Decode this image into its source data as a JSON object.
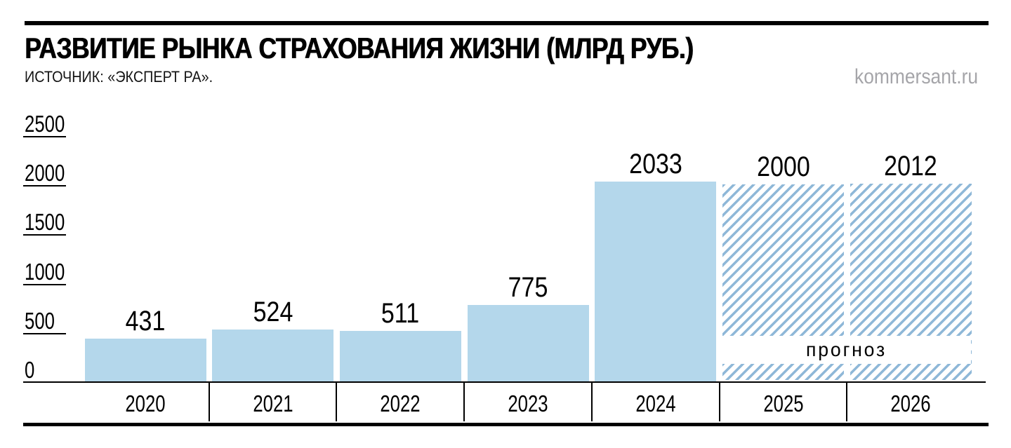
{
  "header": {
    "title": "РАЗВИТИЕ РЫНКА СТРАХОВАНИЯ ЖИЗНИ (МЛРД РУБ.)",
    "source": "ИСТОЧНИК: «ЭКСПЕРТ РА».",
    "watermark": "kommersant.ru"
  },
  "chart_data": {
    "type": "bar",
    "title": "РАЗВИТИЕ РЫНКА СТРАХОВАНИЯ ЖИЗНИ (МЛРД РУБ.)",
    "source": "ИСТОЧНИК: «ЭКСПЕРТ РА».",
    "categories": [
      "2020",
      "2021",
      "2022",
      "2023",
      "2024",
      "2025",
      "2026"
    ],
    "values": [
      431,
      524,
      511,
      775,
      2033,
      2000,
      2012
    ],
    "forecast": [
      false,
      false,
      false,
      false,
      false,
      true,
      true
    ],
    "forecast_label": "прогноз",
    "value_labels_shown": true,
    "y_ticks": [
      0,
      500,
      1000,
      1500,
      2000,
      2500
    ],
    "ylim": [
      0,
      2500
    ],
    "grid": false,
    "legend": false,
    "xlabel": "",
    "ylabel": "",
    "bar_color": "#b4d7eb",
    "hatch_color": "#8fb8d8",
    "axis_color": "#000000",
    "text_color": "#000000",
    "watermark_color": "#a5a5a9"
  }
}
